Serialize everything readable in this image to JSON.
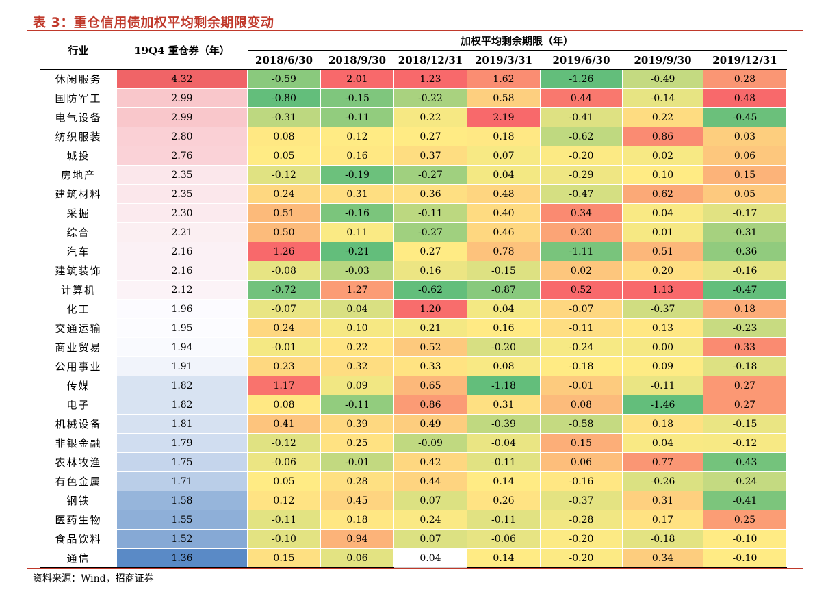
{
  "title": "表 3：重仓信用债加权平均剩余期限变动",
  "source": "资料来源：Wind，招商证券",
  "header": {
    "industry": "行业",
    "holding": "19Q4 重仓券（年）",
    "period_group": "加权平均剩余期限（年）",
    "dates": [
      "2018/6/30",
      "2018/9/30",
      "2018/12/31",
      "2019/3/31",
      "2019/6/30",
      "2019/9/30",
      "2019/12/31"
    ]
  },
  "rows": [
    {
      "industry": "休闲服务",
      "holding": "4.32",
      "values": [
        "-0.59",
        "2.01",
        "1.23",
        "1.62",
        "-1.26",
        "-0.49",
        "0.28"
      ]
    },
    {
      "industry": "国防军工",
      "holding": "2.99",
      "values": [
        "-0.80",
        "-0.15",
        "-0.22",
        "0.58",
        "0.44",
        "-0.14",
        "0.48"
      ]
    },
    {
      "industry": "电气设备",
      "holding": "2.99",
      "values": [
        "-0.31",
        "-0.11",
        "0.22",
        "2.19",
        "-0.41",
        "0.22",
        "-0.45"
      ]
    },
    {
      "industry": "纺织服装",
      "holding": "2.80",
      "values": [
        "0.08",
        "0.12",
        "0.27",
        "0.18",
        "-0.62",
        "0.86",
        "0.03"
      ]
    },
    {
      "industry": "城投",
      "holding": "2.76",
      "values": [
        "0.05",
        "0.16",
        "0.37",
        "0.07",
        "-0.20",
        "0.02",
        "0.06"
      ]
    },
    {
      "industry": "房地产",
      "holding": "2.35",
      "values": [
        "-0.12",
        "-0.19",
        "-0.27",
        "0.04",
        "-0.29",
        "0.10",
        "0.15"
      ]
    },
    {
      "industry": "建筑材料",
      "holding": "2.35",
      "values": [
        "0.24",
        "0.31",
        "0.36",
        "0.48",
        "-0.47",
        "0.62",
        "0.05"
      ]
    },
    {
      "industry": "采掘",
      "holding": "2.30",
      "values": [
        "0.51",
        "-0.16",
        "-0.11",
        "0.40",
        "0.34",
        "0.04",
        "-0.17"
      ]
    },
    {
      "industry": "综合",
      "holding": "2.21",
      "values": [
        "0.50",
        "0.11",
        "-0.27",
        "0.46",
        "0.20",
        "0.01",
        "-0.31"
      ]
    },
    {
      "industry": "汽车",
      "holding": "2.16",
      "values": [
        "1.26",
        "-0.21",
        "0.27",
        "0.78",
        "-1.11",
        "0.51",
        "-0.36"
      ]
    },
    {
      "industry": "建筑装饰",
      "holding": "2.16",
      "values": [
        "-0.08",
        "-0.03",
        "0.16",
        "-0.15",
        "0.02",
        "0.20",
        "-0.16"
      ]
    },
    {
      "industry": "计算机",
      "holding": "2.12",
      "values": [
        "-0.72",
        "1.27",
        "-0.62",
        "-0.87",
        "0.52",
        "1.13",
        "-0.47"
      ]
    },
    {
      "industry": "化工",
      "holding": "1.96",
      "values": [
        "-0.07",
        "0.04",
        "1.20",
        "0.04",
        "-0.07",
        "-0.37",
        "0.18"
      ]
    },
    {
      "industry": "交通运输",
      "holding": "1.95",
      "values": [
        "0.24",
        "0.10",
        "0.21",
        "0.16",
        "-0.11",
        "0.13",
        "-0.23"
      ]
    },
    {
      "industry": "商业贸易",
      "holding": "1.94",
      "values": [
        "-0.01",
        "0.22",
        "0.52",
        "-0.20",
        "-0.24",
        "0.00",
        "0.33"
      ]
    },
    {
      "industry": "公用事业",
      "holding": "1.91",
      "values": [
        "0.23",
        "0.32",
        "0.33",
        "0.08",
        "-0.18",
        "0.09",
        "-0.18"
      ]
    },
    {
      "industry": "传媒",
      "holding": "1.82",
      "values": [
        "1.17",
        "0.09",
        "0.65",
        "-1.18",
        "-0.01",
        "-0.11",
        "0.27"
      ]
    },
    {
      "industry": "电子",
      "holding": "1.82",
      "values": [
        "0.08",
        "-0.11",
        "0.86",
        "0.31",
        "0.08",
        "-1.46",
        "0.27"
      ]
    },
    {
      "industry": "机械设备",
      "holding": "1.81",
      "values": [
        "0.41",
        "0.39",
        "0.49",
        "-0.39",
        "-0.58",
        "0.18",
        "-0.15"
      ]
    },
    {
      "industry": "非银金融",
      "holding": "1.79",
      "values": [
        "-0.12",
        "0.25",
        "-0.09",
        "-0.04",
        "0.15",
        "0.04",
        "-0.12"
      ]
    },
    {
      "industry": "农林牧渔",
      "holding": "1.75",
      "values": [
        "-0.06",
        "-0.01",
        "0.42",
        "-0.11",
        "0.06",
        "0.77",
        "-0.43"
      ]
    },
    {
      "industry": "有色金属",
      "holding": "1.71",
      "values": [
        "0.05",
        "0.28",
        "0.44",
        "0.14",
        "-0.16",
        "-0.26",
        "-0.24"
      ]
    },
    {
      "industry": "钢铁",
      "holding": "1.58",
      "values": [
        "0.12",
        "0.45",
        "0.07",
        "0.26",
        "-0.37",
        "0.31",
        "-0.41"
      ]
    },
    {
      "industry": "医药生物",
      "holding": "1.55",
      "values": [
        "-0.11",
        "0.18",
        "0.24",
        "-0.11",
        "-0.28",
        "0.17",
        "0.25"
      ]
    },
    {
      "industry": "食品饮料",
      "holding": "1.52",
      "values": [
        "-0.10",
        "0.94",
        "0.07",
        "-0.06",
        "-0.20",
        "-0.18",
        "-0.10"
      ]
    },
    {
      "industry": "通信",
      "holding": "1.36",
      "values": [
        "0.15",
        "0.06",
        "0.04",
        "0.14",
        "-0.20",
        "0.34",
        "-0.10"
      ]
    }
  ],
  "colors": {
    "title": "#c0392b",
    "holding_high": "#f06467",
    "holding_mid_high": "#f9c6cb",
    "holding_neutral": "#fcfcff",
    "holding_low": "#5a8ac6",
    "heat_red": "#f8696b",
    "heat_yellow": "#ffeb84",
    "heat_green": "#63be7b"
  }
}
